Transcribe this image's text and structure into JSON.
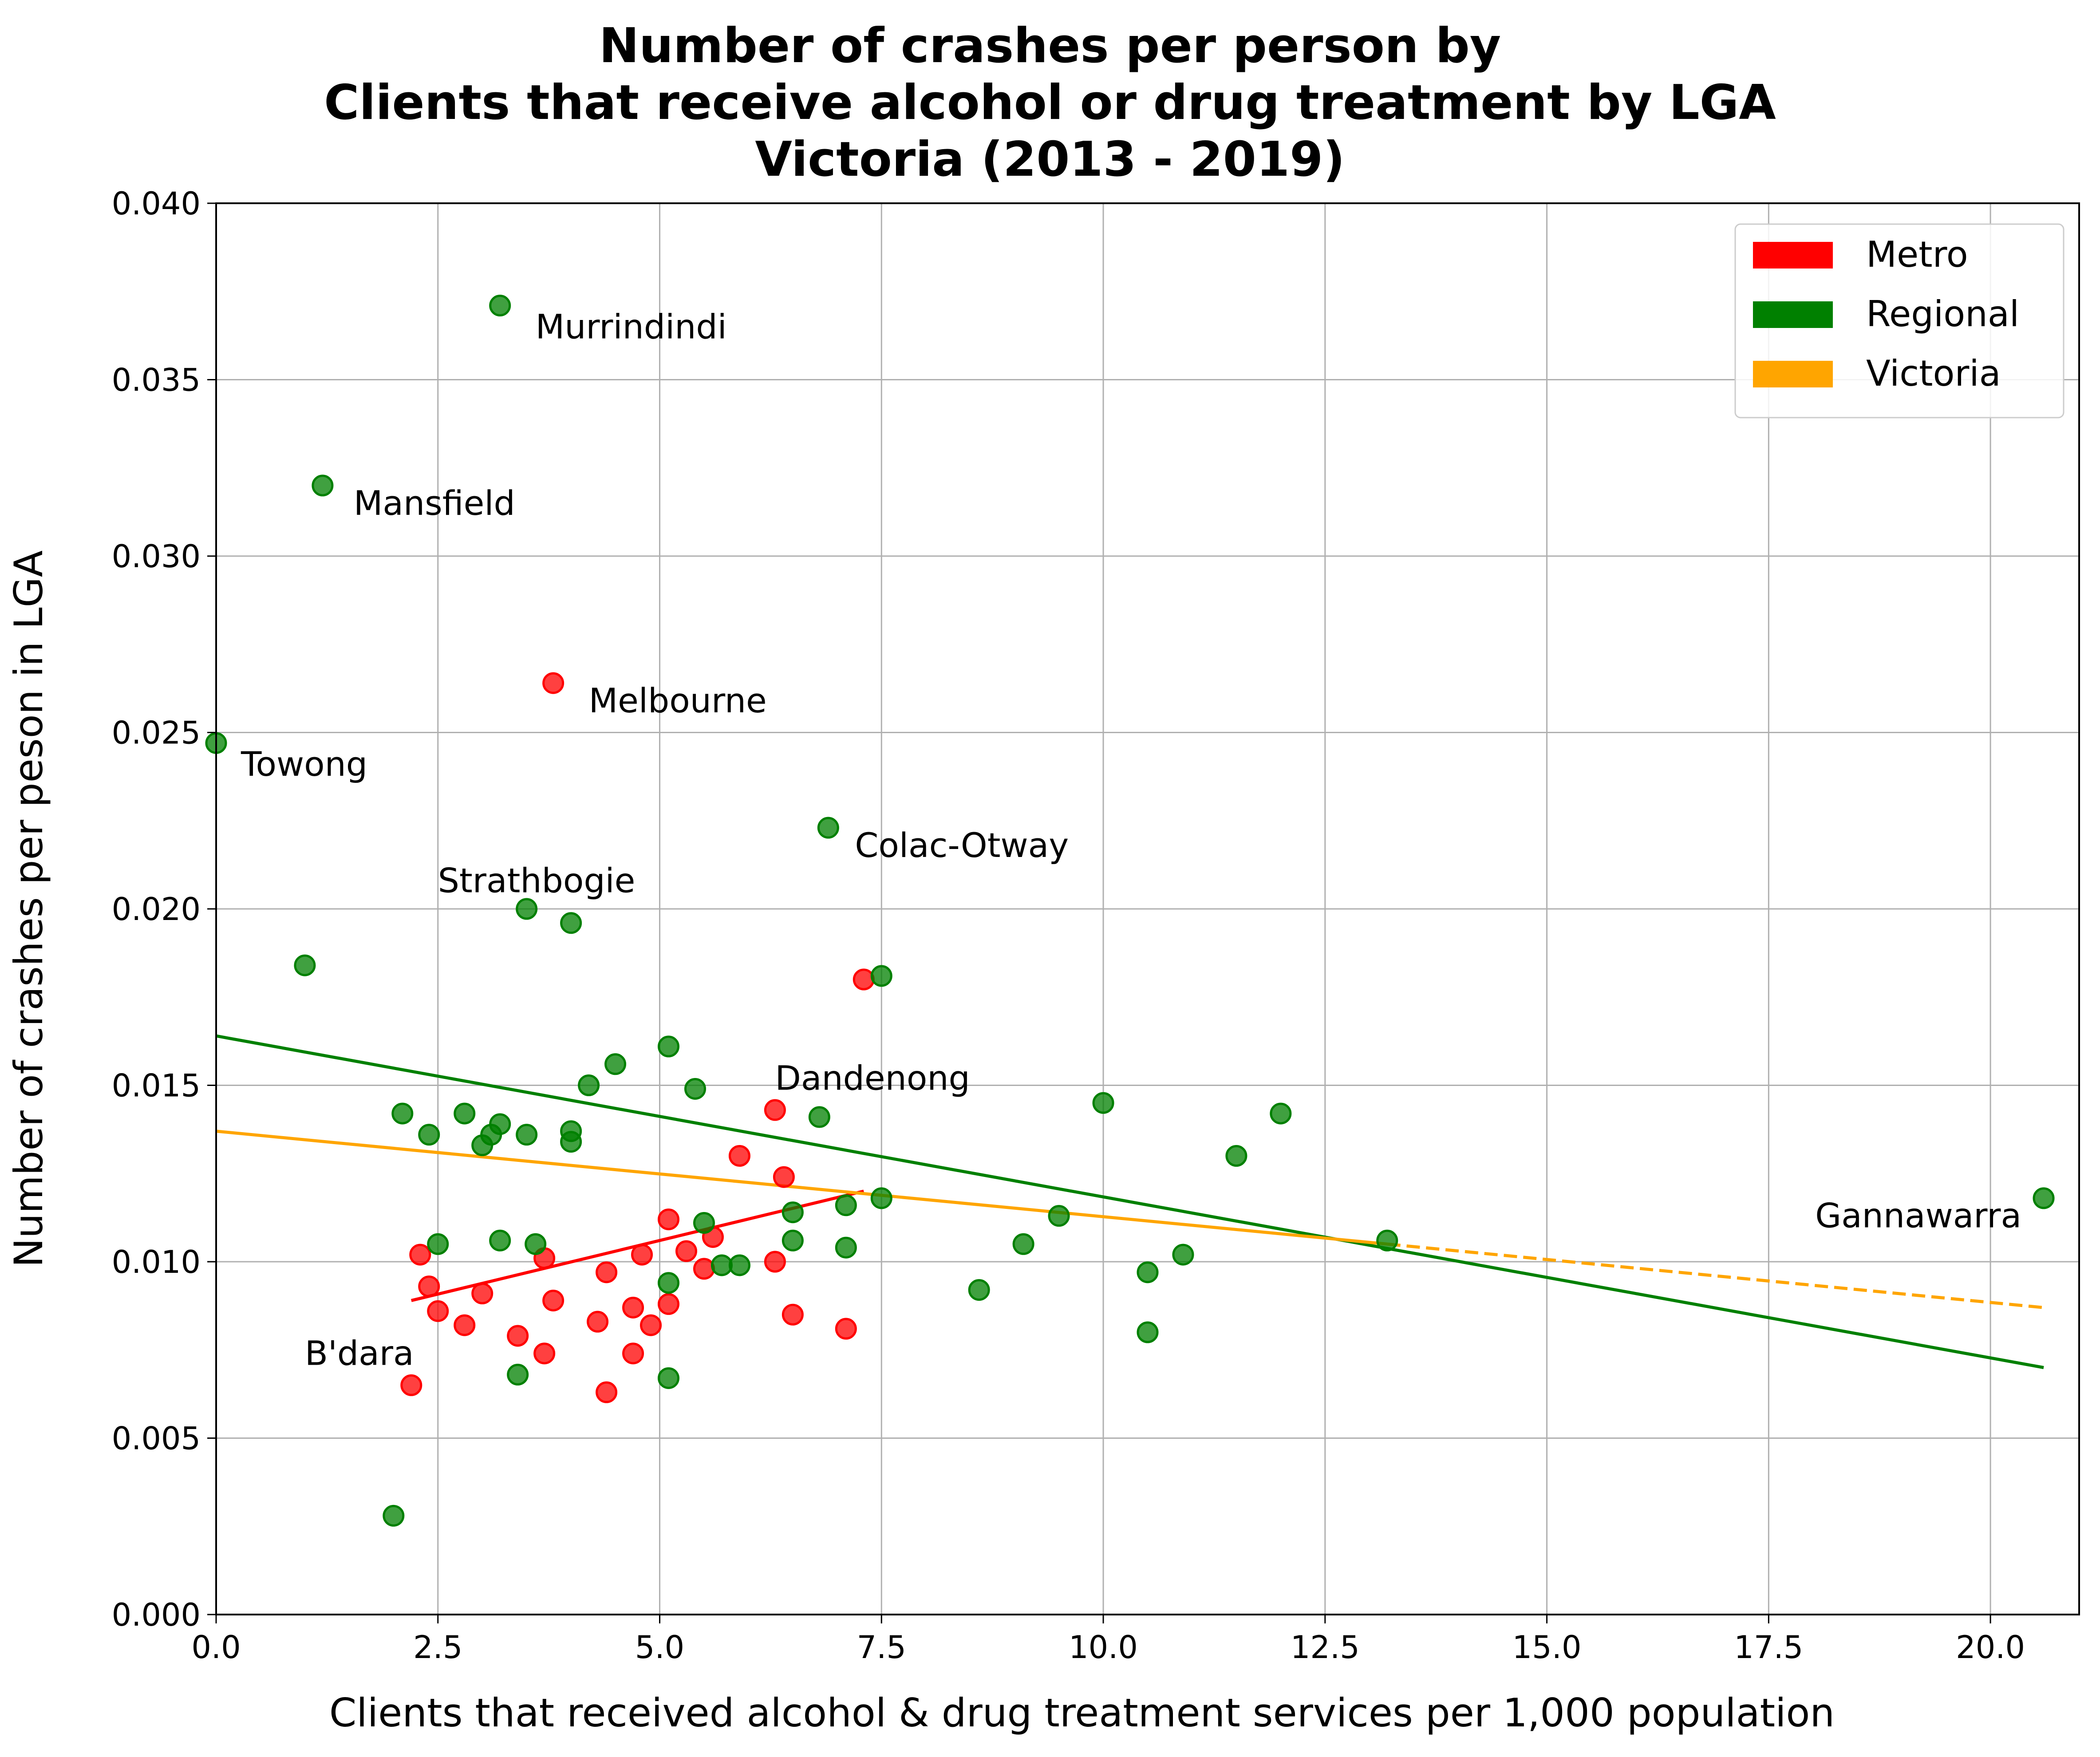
{
  "chart_data": {
    "type": "scatter",
    "title_lines": [
      "Number of crashes per person by",
      "Clients that receive alcohol or drug treatment by LGA",
      "Victoria (2013 - 2019)"
    ],
    "xlabel": "Clients that received alcohol & drug treatment services per 1,000 population",
    "ylabel": "Number of crashes per peson in LGA",
    "xlim": [
      0,
      21
    ],
    "ylim": [
      0,
      0.04
    ],
    "grid": true,
    "legend_position": "top-right",
    "x_ticks": [
      {
        "value": 0,
        "label": "0.0"
      },
      {
        "value": 2.5,
        "label": "2.5"
      },
      {
        "value": 5,
        "label": "5.0"
      },
      {
        "value": 7.5,
        "label": "7.5"
      },
      {
        "value": 10,
        "label": "10.0"
      },
      {
        "value": 12.5,
        "label": "12.5"
      },
      {
        "value": 15,
        "label": "15.0"
      },
      {
        "value": 17.5,
        "label": "17.5"
      },
      {
        "value": 20,
        "label": "20.0"
      }
    ],
    "y_ticks": [
      {
        "value": 0,
        "label": "0.000"
      },
      {
        "value": 0.005,
        "label": "0.005"
      },
      {
        "value": 0.01,
        "label": "0.010"
      },
      {
        "value": 0.015,
        "label": "0.015"
      },
      {
        "value": 0.02,
        "label": "0.020"
      },
      {
        "value": 0.025,
        "label": "0.025"
      },
      {
        "value": 0.03,
        "label": "0.030"
      },
      {
        "value": 0.035,
        "label": "0.035"
      },
      {
        "value": 0.04,
        "label": "0.040"
      }
    ],
    "legend": [
      {
        "label": "Metro",
        "color": "#ff0000"
      },
      {
        "label": "Regional",
        "color": "#008000"
      },
      {
        "label": "Victoria",
        "color": "#ffa500"
      }
    ],
    "series": [
      {
        "name": "Metro",
        "color": "#ff0000",
        "points": [
          [
            3.8,
            0.0264
          ],
          [
            7.3,
            0.018
          ],
          [
            6.3,
            0.0143
          ],
          [
            5.9,
            0.013
          ],
          [
            6.4,
            0.0124
          ],
          [
            5.1,
            0.0112
          ],
          [
            5.6,
            0.0107
          ],
          [
            5.3,
            0.0103
          ],
          [
            4.8,
            0.0102
          ],
          [
            2.3,
            0.0102
          ],
          [
            3.7,
            0.0101
          ],
          [
            6.3,
            0.01
          ],
          [
            5.5,
            0.0098
          ],
          [
            4.4,
            0.0097
          ],
          [
            2.4,
            0.0093
          ],
          [
            3.0,
            0.0091
          ],
          [
            3.8,
            0.0089
          ],
          [
            5.1,
            0.0088
          ],
          [
            4.7,
            0.0087
          ],
          [
            2.5,
            0.0086
          ],
          [
            6.5,
            0.0085
          ],
          [
            4.3,
            0.0083
          ],
          [
            4.9,
            0.0082
          ],
          [
            2.8,
            0.0082
          ],
          [
            7.1,
            0.0081
          ],
          [
            3.4,
            0.0079
          ],
          [
            3.7,
            0.0074
          ],
          [
            4.7,
            0.0074
          ],
          [
            2.2,
            0.0065
          ],
          [
            4.4,
            0.0063
          ]
        ]
      },
      {
        "name": "Regional",
        "color": "#008000",
        "points": [
          [
            3.2,
            0.0371
          ],
          [
            1.2,
            0.032
          ],
          [
            0.0,
            0.0247
          ],
          [
            6.9,
            0.0223
          ],
          [
            3.5,
            0.02
          ],
          [
            4.0,
            0.0196
          ],
          [
            1.0,
            0.0184
          ],
          [
            7.5,
            0.0181
          ],
          [
            5.1,
            0.0161
          ],
          [
            4.5,
            0.0156
          ],
          [
            4.2,
            0.015
          ],
          [
            5.4,
            0.0149
          ],
          [
            10.0,
            0.0145
          ],
          [
            12.0,
            0.0142
          ],
          [
            2.1,
            0.0142
          ],
          [
            2.8,
            0.0142
          ],
          [
            6.8,
            0.0141
          ],
          [
            3.2,
            0.0139
          ],
          [
            2.4,
            0.0136
          ],
          [
            3.5,
            0.0136
          ],
          [
            4.0,
            0.0137
          ],
          [
            3.1,
            0.0136
          ],
          [
            3.0,
            0.0133
          ],
          [
            4.0,
            0.0134
          ],
          [
            11.5,
            0.013
          ],
          [
            20.6,
            0.0118
          ],
          [
            7.5,
            0.0118
          ],
          [
            7.1,
            0.0116
          ],
          [
            6.5,
            0.0114
          ],
          [
            9.5,
            0.0113
          ],
          [
            5.5,
            0.0111
          ],
          [
            3.2,
            0.0106
          ],
          [
            2.5,
            0.0105
          ],
          [
            3.6,
            0.0105
          ],
          [
            6.5,
            0.0106
          ],
          [
            13.2,
            0.0106
          ],
          [
            9.1,
            0.0105
          ],
          [
            7.1,
            0.0104
          ],
          [
            10.9,
            0.0102
          ],
          [
            5.7,
            0.0099
          ],
          [
            5.9,
            0.0099
          ],
          [
            10.5,
            0.0097
          ],
          [
            5.1,
            0.0094
          ],
          [
            8.6,
            0.0092
          ],
          [
            10.5,
            0.008
          ],
          [
            3.4,
            0.0068
          ],
          [
            5.1,
            0.0067
          ],
          [
            2.0,
            0.0028
          ]
        ]
      }
    ],
    "trend_lines": [
      {
        "name": "Metro",
        "color": "#ff0000",
        "style": "solid",
        "x": [
          2.2,
          7.3
        ],
        "y": [
          0.0089,
          0.012
        ]
      },
      {
        "name": "Regional",
        "color": "#008000",
        "style": "solid",
        "x": [
          0.0,
          20.6
        ],
        "y": [
          0.0164,
          0.007
        ]
      },
      {
        "name": "Victoria",
        "color": "#ffa500",
        "style": "solid",
        "x": [
          0.0,
          13.2
        ],
        "y": [
          0.0137,
          0.0105
        ]
      },
      {
        "name": "Victoria",
        "color": "#ffa500",
        "style": "dashed",
        "x": [
          13.2,
          20.6
        ],
        "y": [
          0.0105,
          0.0087
        ]
      }
    ],
    "annotations": [
      {
        "text": "Murrindindi",
        "x": 3.6,
        "y": 0.0365,
        "anchor": "start"
      },
      {
        "text": "Mansfield",
        "x": 1.55,
        "y": 0.0315,
        "anchor": "start"
      },
      {
        "text": "Melbourne",
        "x": 4.2,
        "y": 0.0259,
        "anchor": "start"
      },
      {
        "text": "Towong",
        "x": 0.28,
        "y": 0.0241,
        "anchor": "start"
      },
      {
        "text": "Colac-Otway",
        "x": 7.2,
        "y": 0.0218,
        "anchor": "start"
      },
      {
        "text": "Strathbogie",
        "x": 2.5,
        "y": 0.0208,
        "anchor": "start"
      },
      {
        "text": "Dandenong",
        "x": 6.3,
        "y": 0.0152,
        "anchor": "start"
      },
      {
        "text": "Gannawarra",
        "x": 20.35,
        "y": 0.0113,
        "anchor": "end"
      },
      {
        "text": "B'dara",
        "x": 1.0,
        "y": 0.0074,
        "anchor": "start"
      }
    ]
  }
}
